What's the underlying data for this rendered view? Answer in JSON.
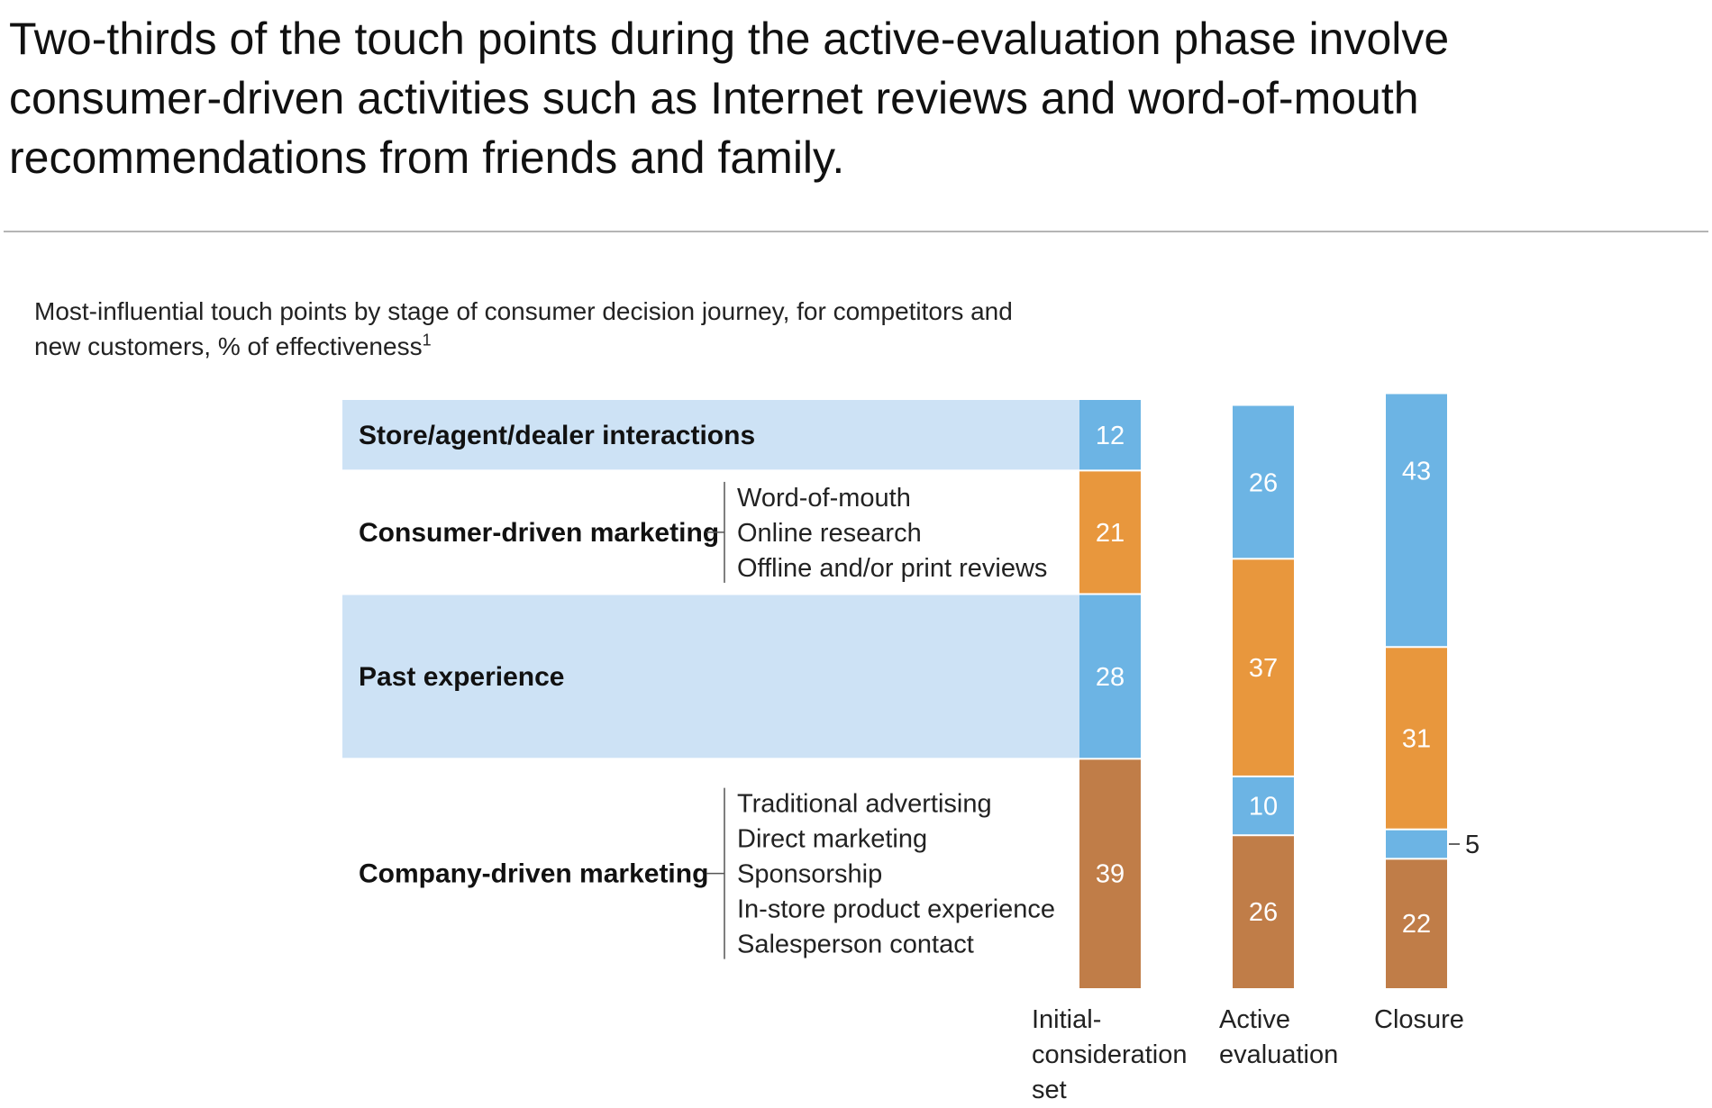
{
  "headline": "Two-thirds of the touch points during the active-evaluation phase involve consumer-driven activities such as Internet reviews and word-of-mouth recommendations from friends and family.",
  "subtitle": "Most-influential touch points by stage of consumer decision journey, for competitors and new customers, % of effectiveness",
  "subtitle_footnote": "1",
  "colors": {
    "store": "#6cb4e4",
    "past": "#6cb4e4",
    "consumer": "#e8973d",
    "company": "#c07d48",
    "band": "#cde2f5",
    "value_text": "#ffffff"
  },
  "chart_data": {
    "type": "bar",
    "stacked": true,
    "categories": [
      "Initial-consideration set",
      "Active evaluation",
      "Closure"
    ],
    "category_label_lines": [
      [
        "Initial-",
        "consideration",
        "set"
      ],
      [
        "Active",
        "evaluation"
      ],
      [
        "Closure"
      ]
    ],
    "series": [
      {
        "name": "Company-driven marketing",
        "key": "company",
        "values": [
          39,
          26,
          22
        ],
        "details": [
          "Traditional advertising",
          "Direct marketing",
          "Sponsorship",
          "In-store product experience",
          "Salesperson contact"
        ]
      },
      {
        "name": "Past experience",
        "key": "past",
        "values": [
          28,
          10,
          5
        ],
        "details": []
      },
      {
        "name": "Consumer-driven marketing",
        "key": "consumer",
        "values": [
          21,
          37,
          31
        ],
        "details": [
          "Word-of-mouth",
          "Online research",
          "Offline and/or print reviews"
        ]
      },
      {
        "name": "Store/agent/dealer interactions",
        "key": "store",
        "values": [
          12,
          26,
          43
        ],
        "details": []
      }
    ],
    "outside_labels": [
      {
        "category": 2,
        "series": 1,
        "value": "5"
      }
    ],
    "ylim": [
      0,
      100
    ]
  }
}
